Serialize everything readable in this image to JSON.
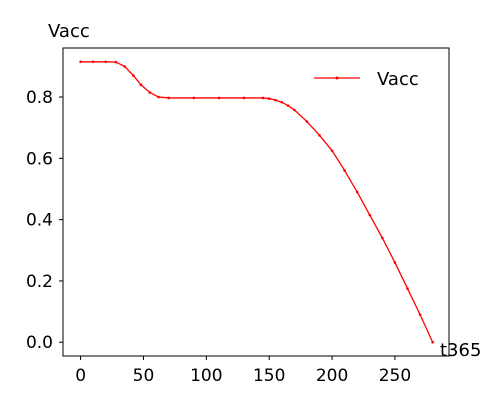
{
  "chart_data": {
    "type": "line",
    "title": "",
    "xlabel": "t365",
    "ylabel": "Vacc",
    "xlim": [
      -14,
      293
    ],
    "ylim": [
      -0.045,
      0.96
    ],
    "xticks": [
      0,
      50,
      100,
      150,
      200,
      250
    ],
    "yticks": [
      0.0,
      0.2,
      0.4,
      0.6,
      0.8
    ],
    "ytick_labels": [
      "0.0",
      "0.2",
      "0.4",
      "0.6",
      "0.8"
    ],
    "grid": false,
    "legend": {
      "position": "top-right",
      "entries": [
        "Vacc"
      ]
    },
    "series": [
      {
        "name": "Vacc",
        "color": "#ff0000",
        "marker": "dot",
        "x": [
          0,
          10,
          20,
          28,
          35,
          42,
          48,
          55,
          62,
          70,
          90,
          110,
          130,
          145,
          150,
          155,
          160,
          165,
          170,
          180,
          190,
          200,
          210,
          220,
          230,
          240,
          250,
          260,
          270,
          280
        ],
        "y": [
          0.915,
          0.915,
          0.915,
          0.914,
          0.9,
          0.87,
          0.84,
          0.815,
          0.8,
          0.797,
          0.797,
          0.797,
          0.797,
          0.797,
          0.795,
          0.79,
          0.783,
          0.772,
          0.758,
          0.72,
          0.675,
          0.625,
          0.56,
          0.49,
          0.415,
          0.34,
          0.26,
          0.175,
          0.09,
          0.0
        ]
      }
    ]
  }
}
